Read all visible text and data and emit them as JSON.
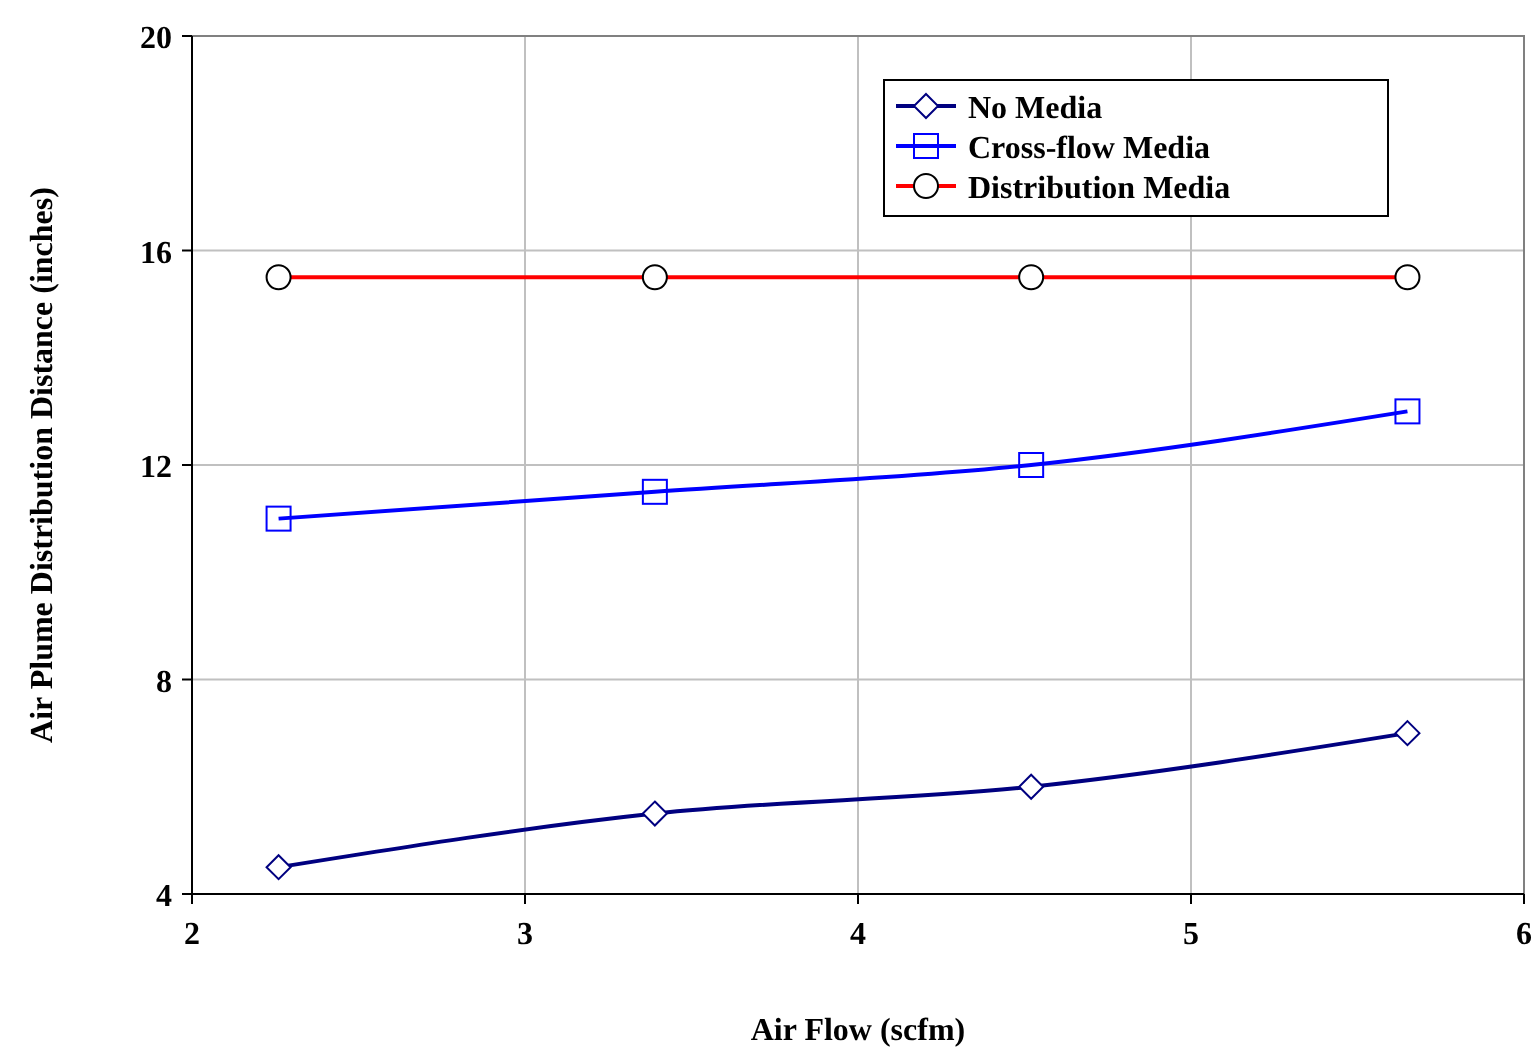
{
  "chart_data": {
    "type": "line",
    "xlabel": "Air Flow (scfm)",
    "ylabel": "Air Plume Distribution Distance (inches)",
    "x": [
      2.26,
      3.39,
      4.52,
      5.65
    ],
    "series": [
      {
        "name": "No Media",
        "color": "#000080",
        "marker": "diamond",
        "values": [
          4.5,
          5.5,
          6,
          7
        ]
      },
      {
        "name": "Cross-flow Media",
        "color": "#0000ff",
        "marker": "square",
        "values": [
          11,
          11.5,
          12,
          13
        ]
      },
      {
        "name": "Distribution Media",
        "color": "#ff0000",
        "marker": "circle",
        "values": [
          15.5,
          15.5,
          15.5,
          15.5
        ]
      }
    ],
    "xlim": [
      2,
      6
    ],
    "xticks": [
      2,
      3,
      4,
      5,
      6
    ],
    "ylim": [
      4,
      20
    ],
    "yticks": [
      4,
      8,
      12,
      16,
      20
    ],
    "grid": true,
    "legend": "top right",
    "line_style": "solid"
  }
}
